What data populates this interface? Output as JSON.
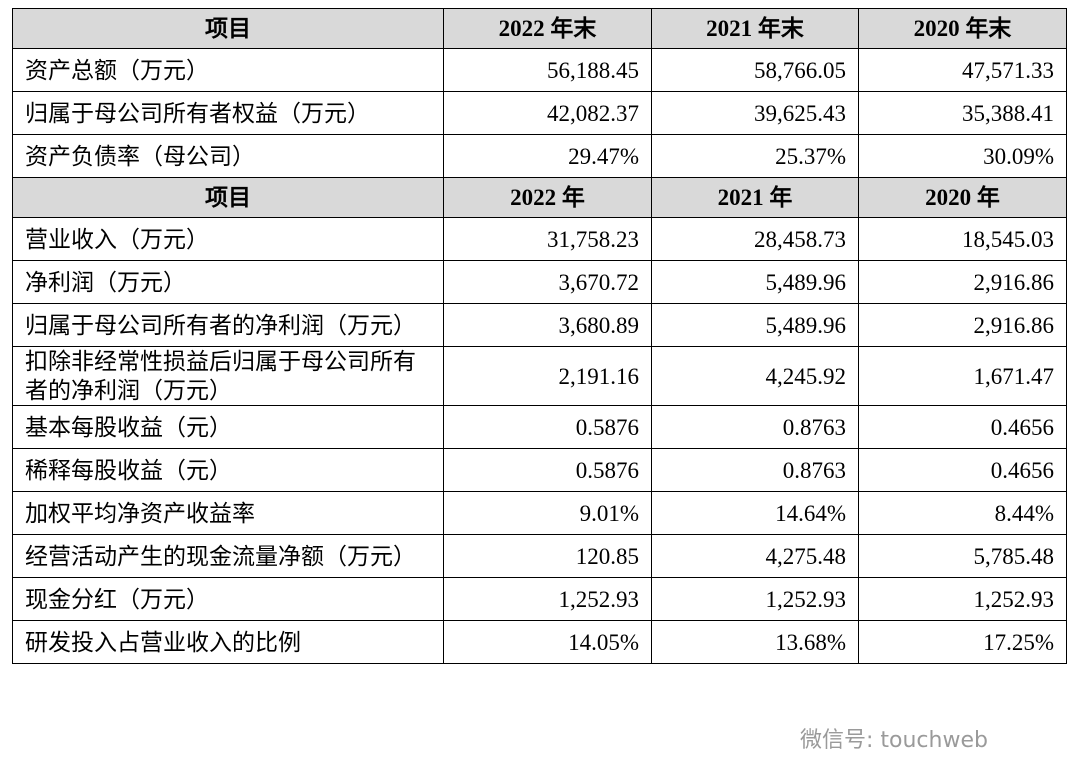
{
  "table": {
    "header1": [
      "项目",
      "2022 年末",
      "2021 年末",
      "2020 年末"
    ],
    "rows1": [
      [
        "资产总额（万元）",
        "56,188.45",
        "58,766.05",
        "47,571.33"
      ],
      [
        "归属于母公司所有者权益（万元）",
        "42,082.37",
        "39,625.43",
        "35,388.41"
      ],
      [
        "资产负债率（母公司）",
        "29.47%",
        "25.37%",
        "30.09%"
      ]
    ],
    "header2": [
      "项目",
      "2022 年",
      "2021 年",
      "2020 年"
    ],
    "rows2": [
      [
        "营业收入（万元）",
        "31,758.23",
        "28,458.73",
        "18,545.03"
      ],
      [
        "净利润（万元）",
        "3,670.72",
        "5,489.96",
        "2,916.86"
      ],
      [
        "归属于母公司所有者的净利润（万元）",
        "3,680.89",
        "5,489.96",
        "2,916.86"
      ],
      [
        "扣除非经常性损益后归属于母公司所有者的净利润（万元）",
        "2,191.16",
        "4,245.92",
        "1,671.47"
      ],
      [
        "基本每股收益（元）",
        "0.5876",
        "0.8763",
        "0.4656"
      ],
      [
        "稀释每股收益（元）",
        "0.5876",
        "0.8763",
        "0.4656"
      ],
      [
        "加权平均净资产收益率",
        "9.01%",
        "14.64%",
        "8.44%"
      ],
      [
        "经营活动产生的现金流量净额（万元）",
        "120.85",
        "4,275.48",
        "5,785.48"
      ],
      [
        "现金分红（万元）",
        "1,252.93",
        "1,252.93",
        "1,252.93"
      ],
      [
        "研发投入占营业收入的比例",
        "14.05%",
        "13.68%",
        "17.25%"
      ]
    ]
  },
  "watermark": "微信号: touchweb"
}
